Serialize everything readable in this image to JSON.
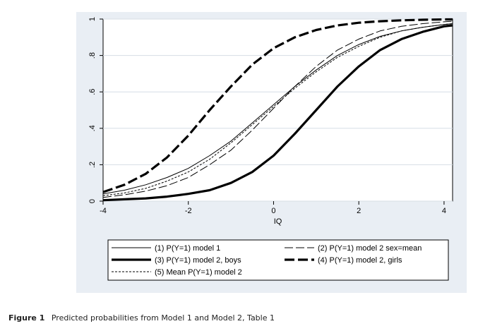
{
  "caption": {
    "label": "Figure 1",
    "text": "Predicted probabilities from Model 1 and Model 2, Table 1"
  },
  "chart_data": {
    "type": "line",
    "title": "",
    "xlabel": "IQ",
    "ylabel": "",
    "xlim": [
      -4,
      4.2
    ],
    "ylim": [
      0,
      1
    ],
    "x_ticks": [
      -4,
      -2,
      0,
      2,
      4
    ],
    "x_tick_labels": [
      "-4",
      "-2",
      "0",
      "2",
      "4"
    ],
    "y_ticks": [
      0,
      0.2,
      0.4,
      0.6,
      0.8,
      1
    ],
    "y_tick_labels": [
      "0",
      ".2",
      ".4",
      ".6",
      ".8",
      "1"
    ],
    "grid": "horizontal",
    "legend_position": "bottom",
    "x": [
      -4,
      -3.5,
      -3,
      -2.5,
      -2,
      -1.5,
      -1,
      -0.5,
      0,
      0.5,
      1,
      1.5,
      2,
      2.5,
      3,
      3.5,
      4,
      4.2
    ],
    "series": [
      {
        "name": "(1) P(Y=1) model 1",
        "style": "thin-solid",
        "color": "#000000",
        "values": [
          0.04,
          0.06,
          0.09,
          0.13,
          0.18,
          0.25,
          0.33,
          0.43,
          0.53,
          0.63,
          0.72,
          0.8,
          0.86,
          0.905,
          0.935,
          0.955,
          0.97,
          0.975
        ]
      },
      {
        "name": "(2) P(Y=1) model 2 sex=mean",
        "style": "thin-longdash",
        "color": "#000000",
        "values": [
          0.02,
          0.035,
          0.055,
          0.085,
          0.13,
          0.2,
          0.28,
          0.39,
          0.51,
          0.63,
          0.74,
          0.83,
          0.89,
          0.935,
          0.96,
          0.975,
          0.985,
          0.988
        ]
      },
      {
        "name": "(3) P(Y=1) model 2, boys",
        "style": "thick-solid",
        "color": "#000000",
        "values": [
          0.005,
          0.01,
          0.015,
          0.025,
          0.04,
          0.06,
          0.1,
          0.16,
          0.25,
          0.37,
          0.5,
          0.63,
          0.74,
          0.83,
          0.89,
          0.93,
          0.96,
          0.965
        ]
      },
      {
        "name": "(4) P(Y=1) model 2, girls",
        "style": "thick-dash",
        "color": "#000000",
        "values": [
          0.05,
          0.09,
          0.15,
          0.24,
          0.36,
          0.5,
          0.63,
          0.75,
          0.84,
          0.9,
          0.94,
          0.965,
          0.98,
          0.988,
          0.993,
          0.996,
          0.998,
          0.998
        ]
      },
      {
        "name": "(5) Mean P(Y=1) model 2",
        "style": "thin-shortdash",
        "color": "#000000",
        "values": [
          0.03,
          0.045,
          0.07,
          0.11,
          0.16,
          0.23,
          0.32,
          0.42,
          0.52,
          0.62,
          0.71,
          0.79,
          0.85,
          0.9,
          0.935,
          0.955,
          0.97,
          0.975
        ]
      }
    ]
  }
}
